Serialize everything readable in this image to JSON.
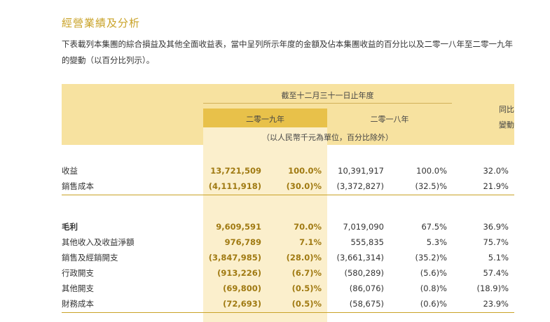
{
  "section": {
    "title": "經營業績及分析",
    "description": "下表載列本集團的綜合損益及其他全面收益表，當中呈列所示年度的金額及佔本集團收益的百分比以及二零一八年至二零一九年的變動（以百分比列示）。"
  },
  "table": {
    "header_period": "截至十二月三十一日止年度",
    "header_2019": "二零一九年",
    "header_2018": "二零一八年",
    "header_yoy_1": "同比",
    "header_yoy_2": "變動",
    "header_unit": "（以人民幣千元為單位，百分比除外）",
    "rows": [
      {
        "label": "收益",
        "amt2019": "13,721,509",
        "pct2019": "100.0%",
        "amt2018": "10,391,917",
        "pct2018": "100.0%",
        "yoy": "32.0%"
      },
      {
        "label": "銷售成本",
        "amt2019": "(4,111,918)",
        "pct2019": "(30.0)%",
        "amt2018": "(3,372,827)",
        "pct2018": "(32.5)%",
        "yoy": "21.9%"
      },
      {
        "label": "毛利",
        "amt2019": "9,609,591",
        "pct2019": "70.0%",
        "amt2018": "7,019,090",
        "pct2018": "67.5%",
        "yoy": "36.9%"
      },
      {
        "label": "其他收入及收益淨額",
        "amt2019": "976,789",
        "pct2019": "7.1%",
        "amt2018": "555,835",
        "pct2018": "5.3%",
        "yoy": "75.7%"
      },
      {
        "label": "銷售及經銷開支",
        "amt2019": "(3,847,985)",
        "pct2019": "(28.0)%",
        "amt2018": "(3,661,314)",
        "pct2018": "(35.2)%",
        "yoy": "5.1%"
      },
      {
        "label": "行政開支",
        "amt2019": "(913,226)",
        "pct2019": "(6.7)%",
        "amt2018": "(580,289)",
        "pct2018": "(5.6)%",
        "yoy": "57.4%"
      },
      {
        "label": "其他開支",
        "amt2019": "(69,800)",
        "pct2019": "(0.5)%",
        "amt2018": "(86,076)",
        "pct2018": "(0.8)%",
        "yoy": "(18.9)%"
      },
      {
        "label": "財務成本",
        "amt2019": "(72,693)",
        "pct2019": "(0.5)%",
        "amt2018": "(58,675)",
        "pct2018": "(0.6)%",
        "yoy": "23.9%"
      }
    ]
  }
}
